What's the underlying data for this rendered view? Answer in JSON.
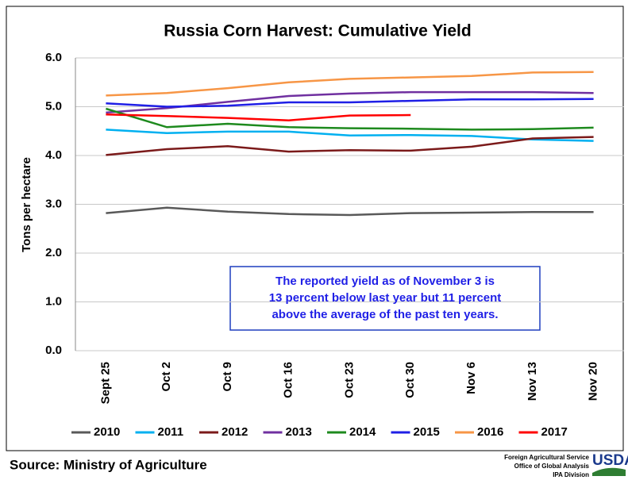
{
  "chart_data": {
    "type": "line",
    "title": "Russia Corn Harvest: Cumulative Yield",
    "ylabel": "Tons per hectare",
    "categories": [
      "Sept 25",
      "Oct 2",
      "Oct 9",
      "Oct 16",
      "Oct 23",
      "Oct 30",
      "Nov 6",
      "Nov 13",
      "Nov 20"
    ],
    "ylim": [
      0,
      6
    ],
    "yticks": [
      {
        "value": 0,
        "label": "0.0"
      },
      {
        "value": 1,
        "label": "1.0"
      },
      {
        "value": 2,
        "label": "2.0"
      },
      {
        "value": 3,
        "label": "3.0"
      },
      {
        "value": 4,
        "label": "4.0"
      },
      {
        "value": 5,
        "label": "5.0"
      },
      {
        "value": 6,
        "label": "6.0"
      }
    ],
    "grid": true,
    "legend": "bottom",
    "series": [
      {
        "name": "2010",
        "color": "#595959",
        "values": [
          2.82,
          2.93,
          2.85,
          2.8,
          2.78,
          2.82,
          2.83,
          2.84,
          2.84
        ]
      },
      {
        "name": "2011",
        "color": "#00b0f0",
        "values": [
          4.53,
          4.46,
          4.49,
          4.49,
          4.41,
          4.42,
          4.4,
          4.33,
          4.3
        ]
      },
      {
        "name": "2012",
        "color": "#7b1a1a",
        "values": [
          4.01,
          4.13,
          4.19,
          4.08,
          4.11,
          4.1,
          4.18,
          4.35,
          4.38
        ]
      },
      {
        "name": "2013",
        "color": "#7030a0",
        "values": [
          4.88,
          4.97,
          5.1,
          5.22,
          5.27,
          5.3,
          5.3,
          5.3,
          5.28
        ]
      },
      {
        "name": "2014",
        "color": "#1e8a1e",
        "values": [
          4.96,
          4.58,
          4.65,
          4.58,
          4.56,
          4.55,
          4.53,
          4.54,
          4.57
        ]
      },
      {
        "name": "2015",
        "color": "#1f1fe6",
        "values": [
          5.07,
          5.0,
          5.02,
          5.09,
          5.09,
          5.12,
          5.15,
          5.15,
          5.16
        ]
      },
      {
        "name": "2016",
        "color": "#f79646",
        "values": [
          5.23,
          5.28,
          5.38,
          5.5,
          5.57,
          5.6,
          5.63,
          5.7,
          5.71
        ]
      },
      {
        "name": "2017",
        "color": "#ff0000",
        "values": [
          4.84,
          4.81,
          4.77,
          4.72,
          4.82,
          4.83,
          null,
          null,
          null
        ]
      }
    ],
    "annotation": [
      "The reported yield as of November 3 is",
      "13 percent below last year but 11 percent",
      "above the average of the past ten years."
    ]
  },
  "footer": {
    "source": "Source: Ministry of Agriculture",
    "agency": [
      "Foreign Agricultural Service",
      "Office of Global Analysis",
      "IPA Division"
    ],
    "logo": "USDA"
  }
}
